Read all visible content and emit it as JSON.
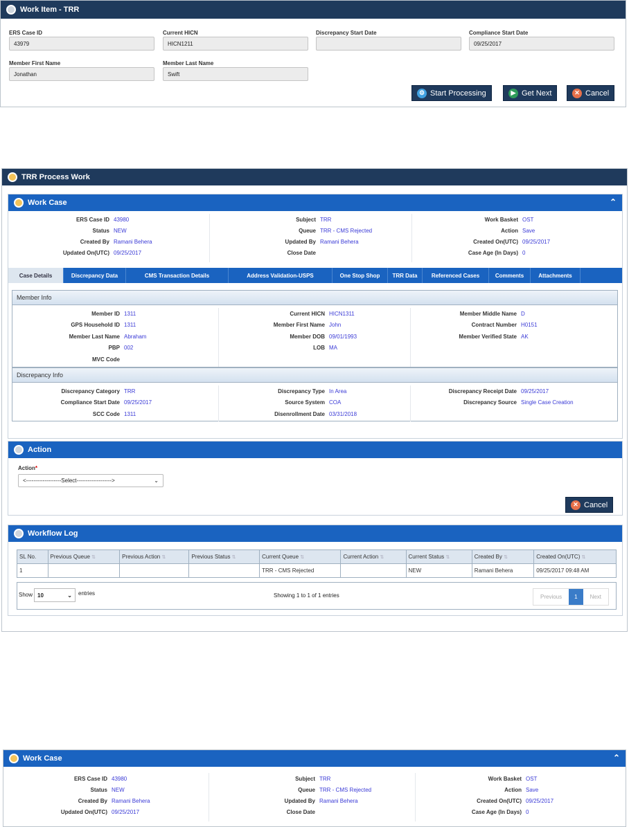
{
  "work_item": {
    "title": "Work Item - TRR",
    "fields": [
      {
        "label": "ERS Case ID",
        "value": "43979"
      },
      {
        "label": "Current HICN",
        "value": "HICN1211"
      },
      {
        "label": "Discrepancy Start Date",
        "value": ""
      },
      {
        "label": "Compliance Start Date",
        "value": "09/25/2017"
      },
      {
        "label": "Member First Name",
        "value": "Jonathan"
      },
      {
        "label": "Member Last Name",
        "value": "Swift"
      }
    ],
    "buttons": {
      "start": "Start Processing",
      "next": "Get Next",
      "cancel": "Cancel"
    }
  },
  "process": {
    "title": "TRR Process Work",
    "work_case": {
      "title": "Work Case",
      "cols": [
        [
          {
            "k": "ERS Case ID",
            "v": "43980"
          },
          {
            "k": "Status",
            "v": "NEW"
          },
          {
            "k": "Created By",
            "v": "Ramani Behera"
          },
          {
            "k": "Updated On(UTC)",
            "v": "09/25/2017"
          }
        ],
        [
          {
            "k": "Subject",
            "v": "TRR"
          },
          {
            "k": "Queue",
            "v": "TRR - CMS Rejected"
          },
          {
            "k": "Updated By",
            "v": "Ramani Behera"
          },
          {
            "k": "Close Date",
            "v": ""
          }
        ],
        [
          {
            "k": "Work Basket",
            "v": "OST"
          },
          {
            "k": "Action",
            "v": "Save"
          },
          {
            "k": "Created On(UTC)",
            "v": "09/25/2017"
          },
          {
            "k": "Case Age (In Days)",
            "v": "0"
          }
        ]
      ]
    },
    "tabs": [
      "Case Details",
      "Discrepancy Data",
      "CMS Transaction Details",
      "Address Validation-USPS",
      "One Stop Shop",
      "TRR Data",
      "Referenced Cases",
      "Comments",
      "Attachments"
    ],
    "member_info": {
      "title": "Member Info",
      "cols": [
        [
          {
            "k": "Member ID",
            "v": "1311"
          },
          {
            "k": "GPS Household ID",
            "v": "1311"
          },
          {
            "k": "Member Last Name",
            "v": "Abraham"
          },
          {
            "k": "PBP",
            "v": "002"
          },
          {
            "k": "MVC Code",
            "v": ""
          }
        ],
        [
          {
            "k": "Current HICN",
            "v": "HICN1311"
          },
          {
            "k": "Member First Name",
            "v": "John"
          },
          {
            "k": "Member DOB",
            "v": "09/01/1993"
          },
          {
            "k": "LOB",
            "v": "MA"
          }
        ],
        [
          {
            "k": "Member Middle Name",
            "v": "D"
          },
          {
            "k": "Contract Number",
            "v": "H0151"
          },
          {
            "k": "Member Verified State",
            "v": "AK"
          }
        ]
      ]
    },
    "discrepancy_info": {
      "title": "Discrepancy Info",
      "cols": [
        [
          {
            "k": "Discrepancy Category",
            "v": "TRR"
          },
          {
            "k": "Compliance Start Date",
            "v": "09/25/2017"
          },
          {
            "k": "SCC Code",
            "v": "1311"
          }
        ],
        [
          {
            "k": "Discrepancy Type",
            "v": "In Area"
          },
          {
            "k": "Source System",
            "v": "COA"
          },
          {
            "k": "Disenrollment Date",
            "v": "03/31/2018"
          }
        ],
        [
          {
            "k": "Discrepancy Receipt Date",
            "v": "09/25/2017"
          },
          {
            "k": "Discrepancy Source",
            "v": "Single Case Creation"
          }
        ]
      ]
    },
    "action": {
      "title": "Action",
      "label": "Action",
      "required": "*",
      "select": "<-------------------Select------------------->",
      "cancel": "Cancel"
    },
    "workflow": {
      "title": "Workflow Log",
      "headers": [
        "SL No.",
        "Previous Queue",
        "Previous Action",
        "Previous Status",
        "Current Queue",
        "Current Action",
        "Current Status",
        "Created By",
        "Created On(UTC)"
      ],
      "rows": [
        [
          "1",
          "",
          "",
          "",
          "TRR - CMS Rejected",
          "",
          "NEW",
          "Ramani Behera",
          "09/25/2017 09:48 AM"
        ]
      ],
      "show": "Show",
      "entries_value": "10",
      "entries": "entries",
      "info": "Showing 1 to 1 of 1 entries",
      "prev": "Previous",
      "page": "1",
      "next": "Next"
    }
  },
  "work_case_2": {
    "title": "Work Case"
  },
  "colors": {
    "dark_header": "#1f3a5c",
    "blue_header": "#1a63c0",
    "value_text": "#3a3ad6"
  }
}
